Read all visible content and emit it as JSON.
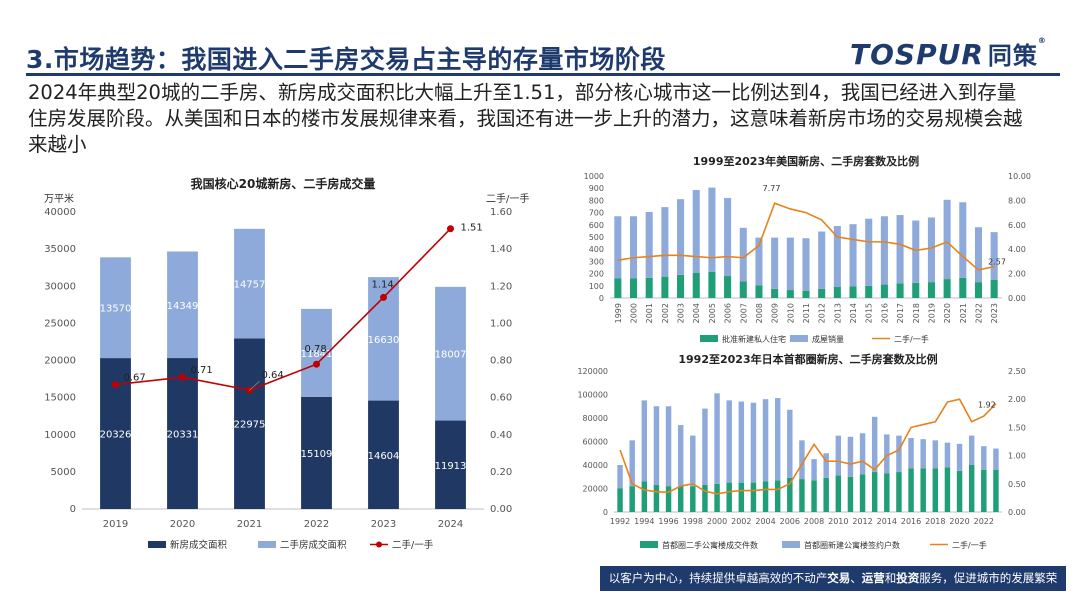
{
  "header": {
    "title": "3.市场趋势：我国进入二手房交易占主导的存量市场阶段",
    "logo_text": "TOSPUR",
    "logo_cn": "同策",
    "logo_mark": "®"
  },
  "summary": "2024年典型20城的二手房、新房成交面积比大幅上升至1.51，部分核心城市这一比例达到4，我国已经进入到存量住房发展阶段。从美国和日本的楼市发展规律来看，我国还有进一步上升的潜力，这意味着新房市场的交易规模会越来越小",
  "footer": {
    "part1": "以客户为中心，持续提供卓越高效的不动产",
    "bold1": "交易",
    "sep1": "、",
    "bold2": "运营",
    "sep2": "和",
    "bold3": "投资",
    "part2": "服务，促进城市的发展繁荣"
  },
  "colors": {
    "brand": "#1f3b6d",
    "new_bar_dark": "#1f3864",
    "second_bar_light": "#8eaadb",
    "red_line": "#c00000",
    "orange_line": "#e8821e",
    "green_bar": "#1f9e77",
    "blue_bar": "#8eaadb"
  },
  "chart_data": [
    {
      "type": "bar",
      "stacked": true,
      "title": "我国核心20城新房、二手房成交量",
      "ylabel": "万平米",
      "y2label": "二手/一手",
      "categories": [
        "2019",
        "2020",
        "2021",
        "2022",
        "2023",
        "2024"
      ],
      "ylim": [
        0,
        40000
      ],
      "yticks": [
        0,
        5000,
        10000,
        15000,
        20000,
        25000,
        30000,
        35000,
        40000
      ],
      "y2lim": [
        0,
        1.6
      ],
      "y2ticks": [
        "0.00",
        "0.20",
        "0.40",
        "0.60",
        "0.80",
        "1.00",
        "1.20",
        "1.40",
        "1.60"
      ],
      "series": [
        {
          "name": "新房成交面积",
          "values": [
            20326,
            20331,
            22975,
            15109,
            14604,
            11913
          ]
        },
        {
          "name": "二手房成交面积",
          "values": [
            13570,
            14349,
            14757,
            11841,
            16630,
            18007
          ]
        },
        {
          "name": "二手/一手",
          "axis": "right",
          "kind": "line",
          "values": [
            0.67,
            0.71,
            0.64,
            0.78,
            1.14,
            1.51
          ]
        }
      ],
      "line_labels": [
        "0.67",
        "0.71",
        "0.64",
        "0.78",
        "1.14",
        "1.51"
      ],
      "legend": "bottom"
    },
    {
      "type": "bar",
      "stacked": true,
      "title": "1999至2023年美国新房、二手房套数及比例",
      "categories": [
        "1999",
        "2000",
        "2001",
        "2002",
        "2003",
        "2004",
        "2005",
        "2006",
        "2007",
        "2008",
        "2009",
        "2010",
        "2011",
        "2012",
        "2013",
        "2014",
        "2015",
        "2016",
        "2017",
        "2018",
        "2019",
        "2020",
        "2021",
        "2022",
        "2023"
      ],
      "ylim": [
        0,
        1000
      ],
      "yticks": [
        0,
        100,
        200,
        300,
        400,
        500,
        600,
        700,
        800,
        900,
        1000
      ],
      "y2lim": [
        0,
        10
      ],
      "y2ticks": [
        "0.00",
        "2.00",
        "4.00",
        "6.00",
        "8.00",
        "10.00"
      ],
      "series": [
        {
          "name": "批准新建私人住宅",
          "values": [
            160,
            160,
            165,
            175,
            190,
            205,
            215,
            180,
            135,
            105,
            75,
            65,
            60,
            75,
            90,
            95,
            100,
            110,
            120,
            125,
            130,
            155,
            165,
            130,
            150
          ]
        },
        {
          "name": "成屋销量",
          "values": [
            510,
            510,
            540,
            570,
            620,
            680,
            690,
            640,
            440,
            390,
            420,
            430,
            430,
            470,
            500,
            510,
            550,
            560,
            560,
            510,
            530,
            650,
            620,
            450,
            390
          ]
        },
        {
          "name": "二手/一手",
          "axis": "right",
          "kind": "line",
          "values": [
            3.1,
            3.3,
            3.4,
            3.5,
            3.5,
            3.4,
            3.3,
            3.4,
            3.3,
            4.3,
            7.77,
            7.3,
            7.0,
            6.4,
            5.0,
            4.8,
            4.6,
            4.6,
            4.4,
            3.9,
            4.1,
            4.6,
            3.4,
            2.3,
            2.57
          ]
        }
      ],
      "annotations": [
        "7.77",
        "2.57"
      ],
      "legend": "bottom"
    },
    {
      "type": "bar",
      "stacked": true,
      "title": "1992至2023年日本首都圈新房、二手房套数及比例",
      "categories": [
        "1992",
        "1993",
        "1994",
        "1995",
        "1996",
        "1997",
        "1998",
        "1999",
        "2000",
        "2001",
        "2002",
        "2003",
        "2004",
        "2005",
        "2006",
        "2007",
        "2008",
        "2009",
        "2010",
        "2011",
        "2012",
        "2013",
        "2014",
        "2015",
        "2016",
        "2017",
        "2018",
        "2019",
        "2020",
        "2021",
        "2022",
        "2023"
      ],
      "xtick_labels": [
        "1992",
        "1994",
        "1996",
        "1998",
        "2000",
        "2002",
        "2004",
        "2006",
        "2008",
        "2010",
        "2012",
        "2014",
        "2016",
        "2018",
        "2020",
        "2022"
      ],
      "ylim": [
        0,
        120000
      ],
      "yticks": [
        0,
        20000,
        40000,
        60000,
        80000,
        100000,
        120000
      ],
      "y2lim": [
        0,
        2.5
      ],
      "y2ticks": [
        "0.00",
        "0.50",
        "1.00",
        "1.50",
        "2.00",
        "2.50"
      ],
      "series": [
        {
          "name": "首都圈二手公寓楼成交件数",
          "values": [
            20000,
            22000,
            26000,
            23000,
            22000,
            22000,
            22000,
            23000,
            24000,
            25000,
            25000,
            25000,
            26000,
            27000,
            29000,
            28000,
            27000,
            29000,
            31000,
            30000,
            32000,
            34000,
            33000,
            34000,
            37000,
            37000,
            37000,
            38000,
            35000,
            40000,
            36000,
            36000
          ]
        },
        {
          "name": "首都圈新建公寓楼签约户数",
          "values": [
            20000,
            39000,
            69000,
            67000,
            68000,
            52000,
            43000,
            65000,
            77000,
            70000,
            69000,
            68000,
            70000,
            70000,
            58000,
            33000,
            18000,
            21000,
            34000,
            34000,
            35000,
            47000,
            33000,
            31000,
            26000,
            25000,
            24000,
            21000,
            23000,
            25000,
            20000,
            18000
          ]
        },
        {
          "name": "二手/一手",
          "axis": "right",
          "kind": "line",
          "values": [
            1.1,
            0.5,
            0.39,
            0.36,
            0.35,
            0.46,
            0.5,
            0.37,
            0.32,
            0.36,
            0.38,
            0.38,
            0.4,
            0.4,
            0.5,
            0.85,
            1.2,
            0.9,
            0.9,
            0.85,
            0.9,
            0.75,
            1.0,
            1.1,
            1.5,
            1.55,
            1.6,
            1.95,
            2.0,
            1.6,
            1.7,
            1.92
          ]
        }
      ],
      "annotations": [
        "1.92"
      ],
      "legend": "bottom"
    }
  ]
}
